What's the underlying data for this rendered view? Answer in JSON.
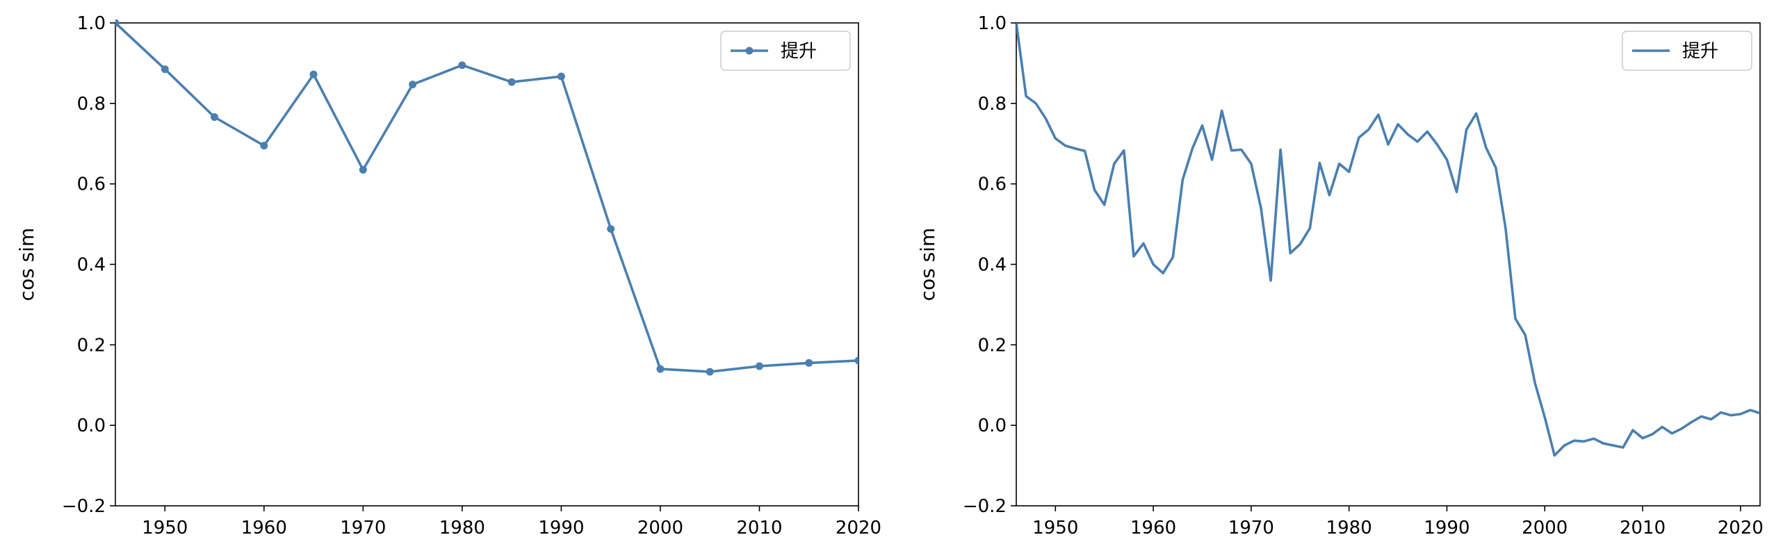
{
  "chart_data": [
    {
      "type": "line",
      "markers": true,
      "ylabel": "cos sim",
      "xlim": [
        1945,
        2020
      ],
      "ylim": [
        -0.2,
        1.0
      ],
      "xticks": [
        "1950",
        "1960",
        "1970",
        "1980",
        "1990",
        "2000",
        "2010",
        "2020"
      ],
      "yticks": [
        "−0.2",
        "0.0",
        "0.2",
        "0.4",
        "0.6",
        "0.8",
        "1.0"
      ],
      "legend_position": "top-right",
      "series": [
        {
          "name": "提升",
          "color": "#4a7fb0",
          "x": [
            1945,
            1950,
            1955,
            1960,
            1965,
            1970,
            1975,
            1980,
            1985,
            1990,
            1995,
            2000,
            2005,
            2010,
            2015,
            2020
          ],
          "y": [
            1.0,
            0.885,
            0.766,
            0.695,
            0.872,
            0.635,
            0.847,
            0.895,
            0.853,
            0.867,
            0.488,
            0.14,
            0.133,
            0.147,
            0.155,
            0.161
          ]
        }
      ]
    },
    {
      "type": "line",
      "markers": false,
      "ylabel": "cos sim",
      "xlim": [
        1946,
        2022
      ],
      "ylim": [
        -0.2,
        1.0
      ],
      "xticks": [
        "1950",
        "1960",
        "1970",
        "1980",
        "1990",
        "2000",
        "2010",
        "2020"
      ],
      "yticks": [
        "−0.2",
        "0.0",
        "0.2",
        "0.4",
        "0.6",
        "0.8",
        "1.0"
      ],
      "legend_position": "top-right",
      "series": [
        {
          "name": "提升",
          "color": "#4a7fb0",
          "x": [
            1946,
            1947,
            1948,
            1949,
            1950,
            1951,
            1952,
            1953,
            1954,
            1955,
            1956,
            1957,
            1958,
            1959,
            1960,
            1961,
            1962,
            1963,
            1964,
            1965,
            1966,
            1967,
            1968,
            1969,
            1970,
            1971,
            1972,
            1973,
            1974,
            1975,
            1976,
            1977,
            1978,
            1979,
            1980,
            1981,
            1982,
            1983,
            1984,
            1985,
            1986,
            1987,
            1988,
            1989,
            1990,
            1991,
            1992,
            1993,
            1994,
            1995,
            1996,
            1997,
            1998,
            1999,
            2000,
            2001,
            2002,
            2003,
            2004,
            2005,
            2006,
            2007,
            2008,
            2009,
            2010,
            2011,
            2012,
            2013,
            2014,
            2015,
            2016,
            2017,
            2018,
            2019,
            2020,
            2021,
            2022
          ],
          "y": [
            1.0,
            0.818,
            0.8,
            0.763,
            0.713,
            0.695,
            0.688,
            0.682,
            0.585,
            0.548,
            0.65,
            0.683,
            0.42,
            0.452,
            0.4,
            0.378,
            0.418,
            0.61,
            0.688,
            0.745,
            0.66,
            0.782,
            0.683,
            0.685,
            0.65,
            0.54,
            0.36,
            0.685,
            0.428,
            0.45,
            0.49,
            0.652,
            0.572,
            0.65,
            0.63,
            0.715,
            0.735,
            0.772,
            0.698,
            0.748,
            0.723,
            0.705,
            0.73,
            0.698,
            0.66,
            0.58,
            0.735,
            0.775,
            0.69,
            0.64,
            0.49,
            0.265,
            0.225,
            0.105,
            0.02,
            -0.075,
            -0.05,
            -0.038,
            -0.04,
            -0.033,
            -0.045,
            -0.05,
            -0.055,
            -0.012,
            -0.032,
            -0.022,
            -0.004,
            -0.02,
            -0.008,
            0.008,
            0.022,
            0.015,
            0.032,
            0.025,
            0.028,
            0.038,
            0.03
          ]
        }
      ]
    }
  ]
}
